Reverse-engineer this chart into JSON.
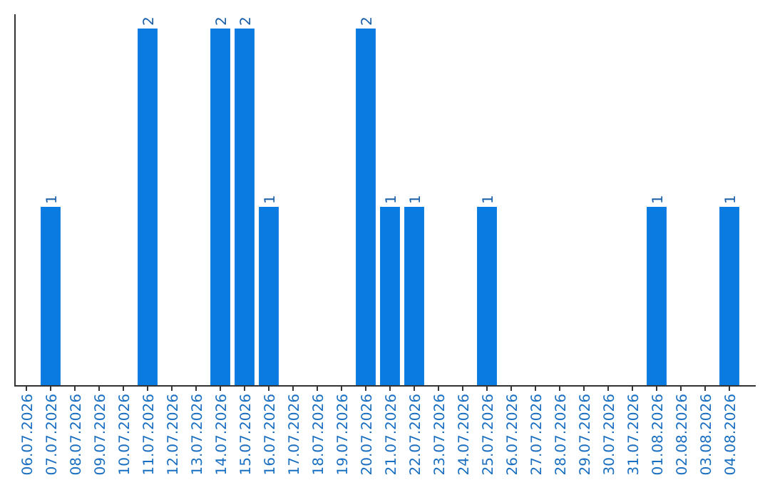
{
  "chart_data": {
    "type": "bar",
    "categories": [
      "06.07.2026",
      "07.07.2026",
      "08.07.2026",
      "09.07.2026",
      "10.07.2026",
      "11.07.2026",
      "12.07.2026",
      "13.07.2026",
      "14.07.2026",
      "15.07.2026",
      "16.07.2026",
      "17.07.2026",
      "18.07.2026",
      "19.07.2026",
      "20.07.2026",
      "21.07.2026",
      "22.07.2026",
      "23.07.2026",
      "24.07.2026",
      "25.07.2026",
      "26.07.2026",
      "27.07.2026",
      "28.07.2026",
      "29.07.2026",
      "30.07.2026",
      "31.07.2026",
      "01.08.2026",
      "02.08.2026",
      "03.08.2026",
      "04.08.2026"
    ],
    "values": [
      0,
      1,
      0,
      0,
      0,
      2,
      0,
      0,
      2,
      2,
      1,
      0,
      0,
      0,
      2,
      1,
      1,
      0,
      0,
      1,
      0,
      0,
      0,
      0,
      0,
      0,
      1,
      0,
      0,
      1
    ],
    "value_labels": [
      null,
      "1",
      null,
      null,
      null,
      "2",
      null,
      null,
      "2",
      "2",
      "1",
      null,
      null,
      null,
      "2",
      "1",
      "1",
      null,
      null,
      "1",
      null,
      null,
      null,
      null,
      null,
      null,
      "1",
      null,
      null,
      "1"
    ],
    "color": "#0a7be0",
    "ylim": [
      0,
      2
    ],
    "tick_labels": "x"
  }
}
